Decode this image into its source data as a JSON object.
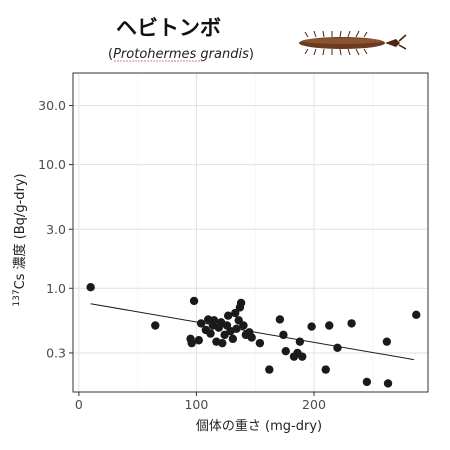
{
  "header": {
    "title": "ヘビトンボ",
    "subtitle_open": "(",
    "subtitle_species": "Protohermes grandis",
    "subtitle_close": ")",
    "insect_icon": "dobsonfly-larva-icon"
  },
  "chart_data": {
    "type": "scatter",
    "title": "ヘビトンボ",
    "subtitle": "(Protohermes grandis)",
    "xlabel": "個体の重さ (mg-dry)",
    "ylabel_sup": "137",
    "ylabel_rest": "Cs 濃度 (Bq/g-dry)",
    "x_scale": "linear",
    "y_scale": "log",
    "xlim": [
      -5,
      297
    ],
    "ylim": [
      0.145,
      55
    ],
    "x_ticks": [
      0,
      100,
      200
    ],
    "x_tick_labels": [
      "0",
      "100",
      "200"
    ],
    "y_ticks": [
      0.3,
      1.0,
      3.0,
      10.0,
      30.0
    ],
    "y_tick_labels": [
      "0.3",
      "1.0",
      "3.0",
      "10.0",
      "30.0"
    ],
    "y_minor_ticks": [
      0.1,
      1,
      10
    ],
    "grid": true,
    "legend": "none",
    "point_color": "#1a1a1a",
    "series": [
      {
        "points": [
          [
            10,
            1.02
          ],
          [
            65,
            0.5
          ],
          [
            95,
            0.39
          ],
          [
            96,
            0.36
          ],
          [
            98,
            0.79
          ],
          [
            102,
            0.38
          ],
          [
            104,
            0.52
          ],
          [
            108,
            0.46
          ],
          [
            110,
            0.56
          ],
          [
            112,
            0.43
          ],
          [
            114,
            0.5
          ],
          [
            115,
            0.55
          ],
          [
            117,
            0.37
          ],
          [
            119,
            0.48
          ],
          [
            121,
            0.53
          ],
          [
            122,
            0.36
          ],
          [
            124,
            0.42
          ],
          [
            126,
            0.5
          ],
          [
            127,
            0.6
          ],
          [
            129,
            0.45
          ],
          [
            131,
            0.39
          ],
          [
            133,
            0.63
          ],
          [
            134,
            0.47
          ],
          [
            136,
            0.55
          ],
          [
            137,
            0.7
          ],
          [
            138,
            0.76
          ],
          [
            140,
            0.5
          ],
          [
            142,
            0.42
          ],
          [
            145,
            0.44
          ],
          [
            147,
            0.4
          ],
          [
            154,
            0.36
          ],
          [
            162,
            0.22
          ],
          [
            171,
            0.56
          ],
          [
            174,
            0.42
          ],
          [
            176,
            0.31
          ],
          [
            183,
            0.28
          ],
          [
            186,
            0.3
          ],
          [
            188,
            0.37
          ],
          [
            190,
            0.28
          ],
          [
            198,
            0.49
          ],
          [
            210,
            0.22
          ],
          [
            213,
            0.5
          ],
          [
            220,
            0.33
          ],
          [
            232,
            0.52
          ],
          [
            245,
            0.175
          ],
          [
            262,
            0.37
          ],
          [
            263,
            0.17
          ],
          [
            287,
            0.61
          ]
        ]
      }
    ],
    "fit_line": {
      "x": [
        10,
        285
      ],
      "y": [
        0.75,
        0.265
      ]
    }
  }
}
